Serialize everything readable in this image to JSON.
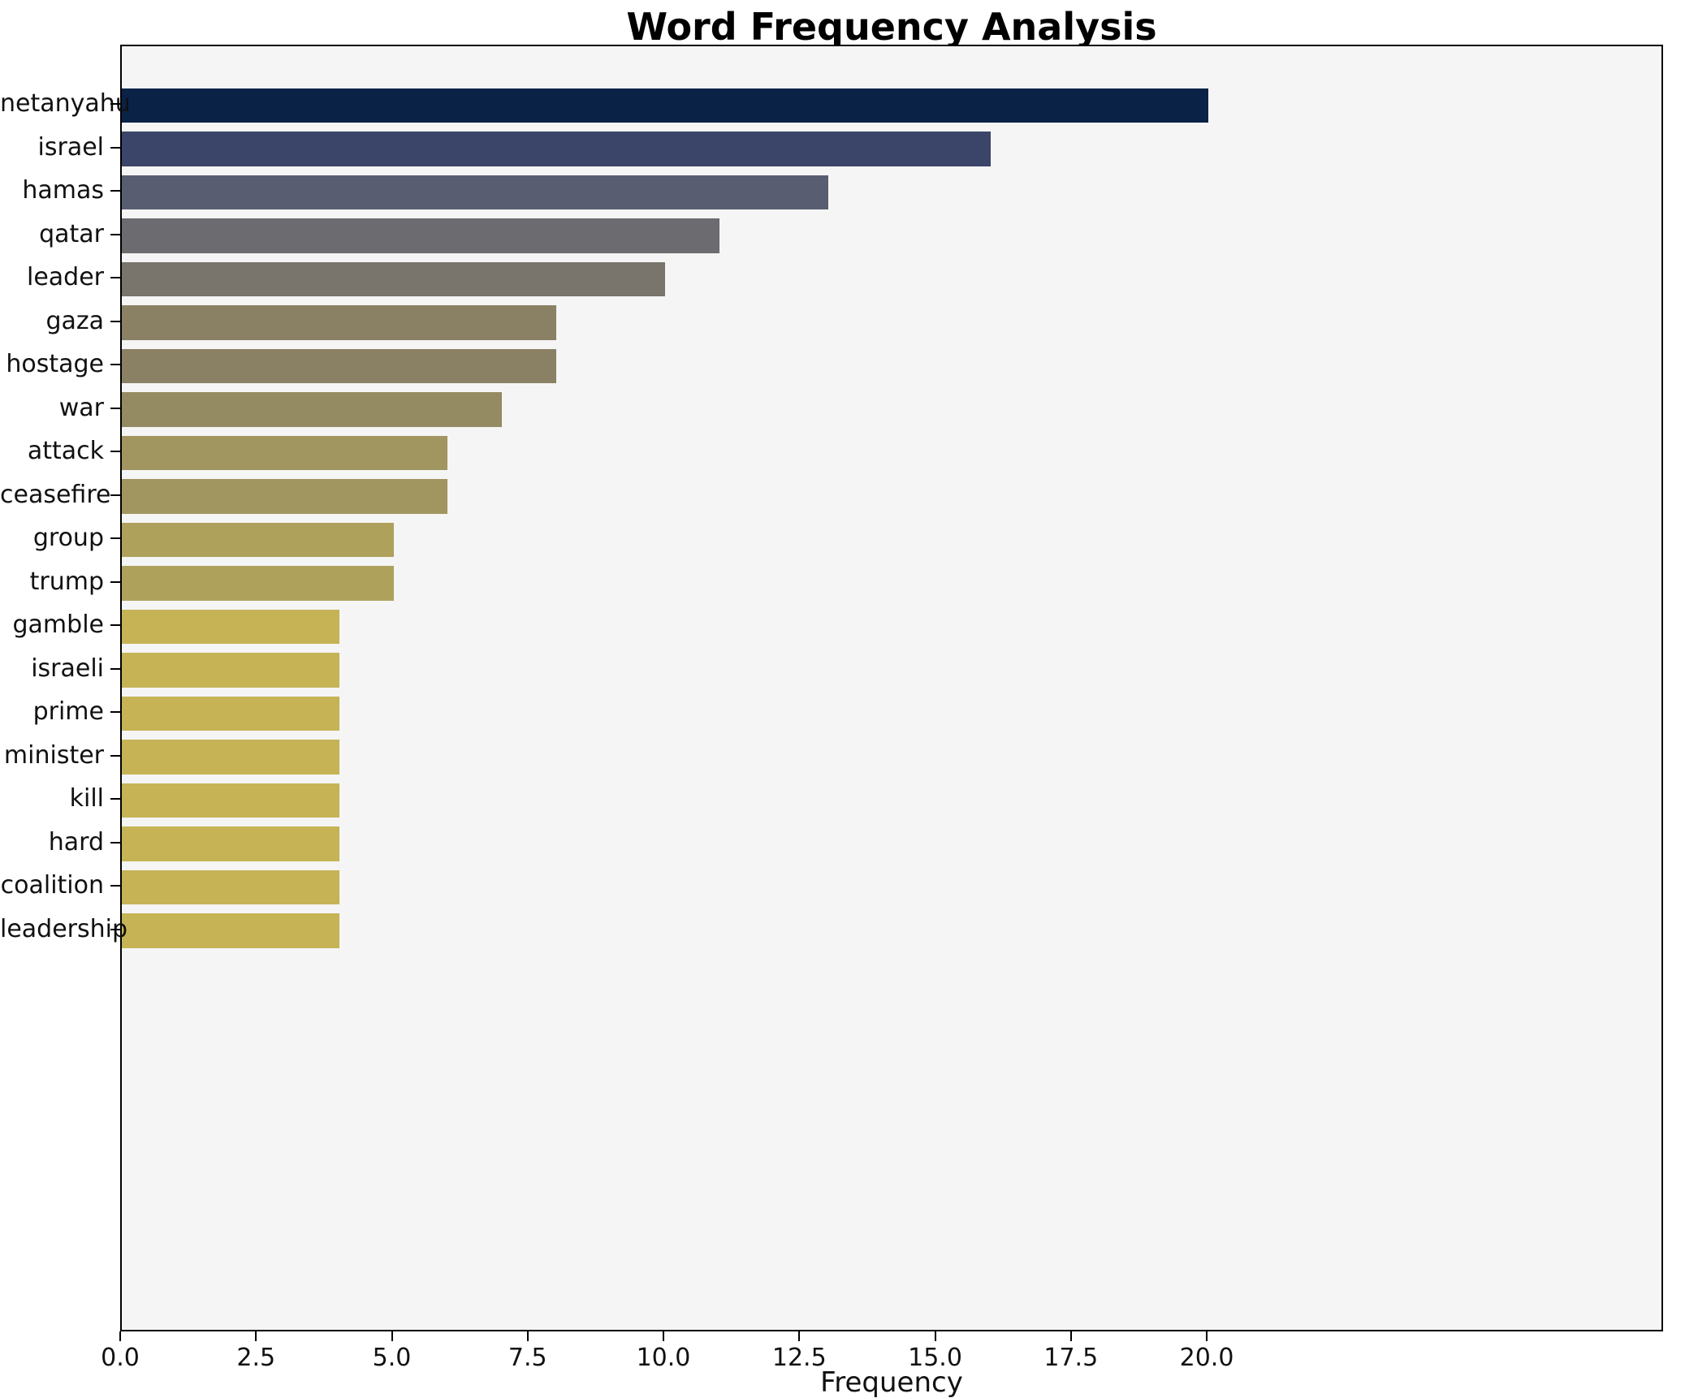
{
  "title": "Word Frequency Analysis",
  "chart_data": {
    "type": "bar",
    "orientation": "horizontal",
    "title": "Word Frequency Analysis",
    "xlabel": "Frequency",
    "ylabel": "",
    "grid": false,
    "legend": false,
    "plot_background": "#f5f5f5",
    "categories": [
      "netanyahu",
      "israel",
      "hamas",
      "qatar",
      "leader",
      "gaza",
      "hostage",
      "war",
      "attack",
      "ceasefire",
      "group",
      "trump",
      "gamble",
      "israeli",
      "prime",
      "minister",
      "kill",
      "hard",
      "coalition",
      "leadership"
    ],
    "values": [
      20,
      16,
      13,
      11,
      10,
      8,
      8,
      7,
      6,
      6,
      5,
      5,
      4,
      4,
      4,
      4,
      4,
      4,
      4,
      4
    ],
    "colors": [
      "#0a2246",
      "#3b4569",
      "#585d71",
      "#6b6b70",
      "#79746c",
      "#8a8165",
      "#8a8165",
      "#958b63",
      "#a19660",
      "#a19660",
      "#aea15c",
      "#aea15c",
      "#c5b356",
      "#c5b356",
      "#c5b356",
      "#c5b356",
      "#c5b356",
      "#c5b356",
      "#c5b356",
      "#c5b356"
    ],
    "xlim": [
      0,
      28.4
    ],
    "xticks": [
      0,
      2.5,
      5,
      7.5,
      10,
      12.5,
      15,
      17.5,
      20
    ],
    "xtick_labels": [
      "0.0",
      "2.5",
      "5.0",
      "7.5",
      "10.0",
      "12.5",
      "15.0",
      "17.5",
      "20.0"
    ]
  }
}
